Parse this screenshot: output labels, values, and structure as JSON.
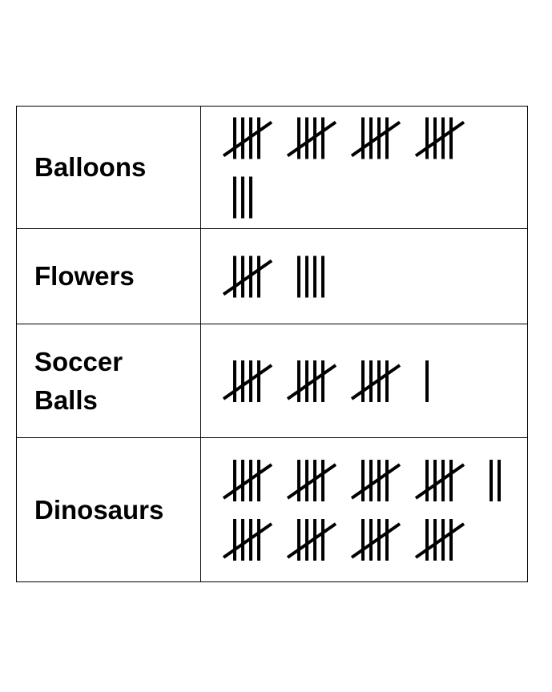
{
  "chart_data": {
    "type": "table",
    "title": "",
    "rows": [
      {
        "category": "Balloons",
        "count": 23,
        "rows_of_marks": [
          20,
          3
        ]
      },
      {
        "category": "Flowers",
        "count": 9,
        "rows_of_marks": [
          9
        ]
      },
      {
        "category": "Soccer\nBalls",
        "count": 16,
        "rows_of_marks": [
          16
        ]
      },
      {
        "category": "Dinosaurs",
        "count": 42,
        "rows_of_marks": [
          22,
          20
        ]
      }
    ]
  },
  "colors": {
    "ink": "#000000",
    "background": "#ffffff"
  }
}
